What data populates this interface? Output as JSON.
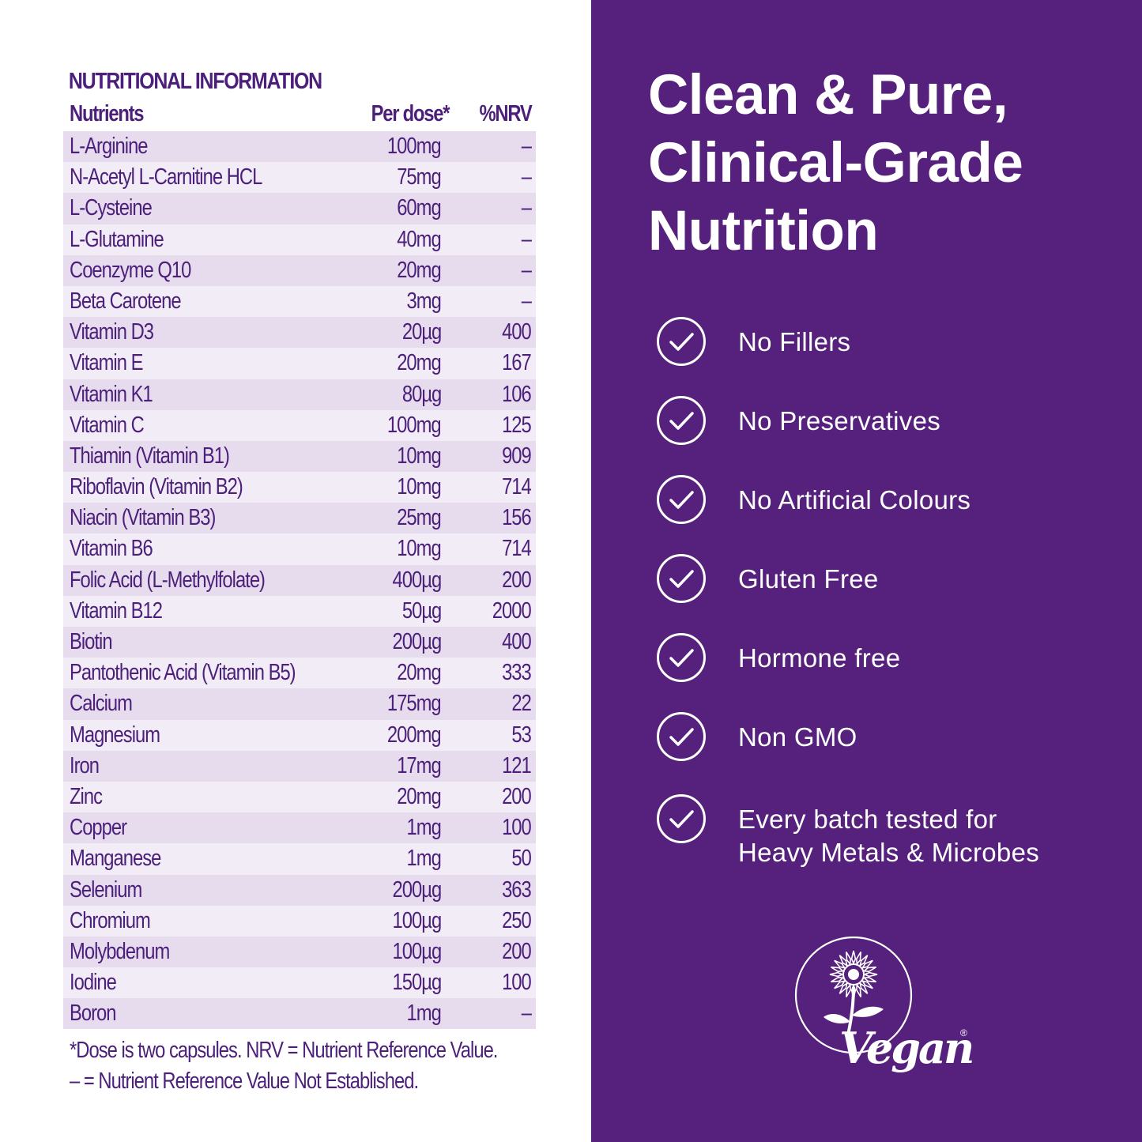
{
  "table": {
    "title": "NUTRITIONAL INFORMATION",
    "headers": {
      "nutrient": "Nutrients",
      "dose": "Per dose*",
      "nrv": "%NRV"
    },
    "rows": [
      {
        "nutrient": "L-Arginine",
        "dose": "100mg",
        "nrv": "–"
      },
      {
        "nutrient": "N-Acetyl L-Carnitine HCL",
        "dose": "75mg",
        "nrv": "–"
      },
      {
        "nutrient": "L-Cysteine",
        "dose": "60mg",
        "nrv": "–"
      },
      {
        "nutrient": "L-Glutamine",
        "dose": "40mg",
        "nrv": "–"
      },
      {
        "nutrient": "Coenzyme Q10",
        "dose": "20mg",
        "nrv": "–"
      },
      {
        "nutrient": "Beta Carotene",
        "dose": "3mg",
        "nrv": "–"
      },
      {
        "nutrient": "Vitamin D3",
        "dose": "20µg",
        "nrv": "400"
      },
      {
        "nutrient": "Vitamin E",
        "dose": "20mg",
        "nrv": "167"
      },
      {
        "nutrient": "Vitamin K1",
        "dose": "80µg",
        "nrv": "106"
      },
      {
        "nutrient": "Vitamin C",
        "dose": "100mg",
        "nrv": "125"
      },
      {
        "nutrient": "Thiamin (Vitamin B1)",
        "dose": "10mg",
        "nrv": "909"
      },
      {
        "nutrient": "Riboflavin (Vitamin B2)",
        "dose": "10mg",
        "nrv": "714"
      },
      {
        "nutrient": "Niacin (Vitamin B3)",
        "dose": "25mg",
        "nrv": "156"
      },
      {
        "nutrient": "Vitamin B6",
        "dose": "10mg",
        "nrv": "714"
      },
      {
        "nutrient": "Folic Acid (L-Methylfolate)",
        "dose": "400µg",
        "nrv": "200"
      },
      {
        "nutrient": "Vitamin B12",
        "dose": "50µg",
        "nrv": "2000"
      },
      {
        "nutrient": "Biotin",
        "dose": "200µg",
        "nrv": "400"
      },
      {
        "nutrient": "Pantothenic Acid (Vitamin B5)",
        "dose": "20mg",
        "nrv": "333"
      },
      {
        "nutrient": "Calcium",
        "dose": "175mg",
        "nrv": "22"
      },
      {
        "nutrient": "Magnesium",
        "dose": "200mg",
        "nrv": "53"
      },
      {
        "nutrient": "Iron",
        "dose": "17mg",
        "nrv": "121"
      },
      {
        "nutrient": "Zinc",
        "dose": "20mg",
        "nrv": "200"
      },
      {
        "nutrient": "Copper",
        "dose": "1mg",
        "nrv": "100"
      },
      {
        "nutrient": "Manganese",
        "dose": "1mg",
        "nrv": "50"
      },
      {
        "nutrient": "Selenium",
        "dose": "200µg",
        "nrv": "363"
      },
      {
        "nutrient": "Chromium",
        "dose": "100µg",
        "nrv": "250"
      },
      {
        "nutrient": "Molybdenum",
        "dose": "100µg",
        "nrv": "200"
      },
      {
        "nutrient": "Iodine",
        "dose": "150µg",
        "nrv": "100"
      },
      {
        "nutrient": "Boron",
        "dose": "1mg",
        "nrv": "–"
      }
    ],
    "footnote_1": "*Dose is two capsules. NRV = Nutrient Reference Value.",
    "footnote_2": "– = Nutrient Reference Value Not Established."
  },
  "headline": {
    "line1": "Clean & Pure,",
    "line2": "Clinical-Grade",
    "line3": "Nutrition"
  },
  "features": [
    {
      "icon": "check-circle-icon",
      "lines": [
        "No Fillers"
      ]
    },
    {
      "icon": "check-circle-icon",
      "lines": [
        "No Preservatives"
      ]
    },
    {
      "icon": "check-circle-icon",
      "lines": [
        "No Artificial Colours"
      ]
    },
    {
      "icon": "check-circle-icon",
      "lines": [
        "Gluten Free"
      ]
    },
    {
      "icon": "check-circle-icon",
      "lines": [
        "Hormone free"
      ]
    },
    {
      "icon": "check-circle-icon",
      "lines": [
        "Non GMO"
      ]
    },
    {
      "icon": "check-circle-icon",
      "lines": [
        "Every batch tested for",
        "Heavy Metals & Microbes"
      ]
    }
  ],
  "vegan_logo": {
    "text": "Vegan",
    "mark": "®",
    "icon": "sunflower-icon"
  },
  "colors": {
    "panel_purple": "#56217c",
    "table_text": "#4b1f7a",
    "row_dark": "#e6dcee",
    "row_light": "#f1ecf6",
    "white": "#ffffff"
  }
}
